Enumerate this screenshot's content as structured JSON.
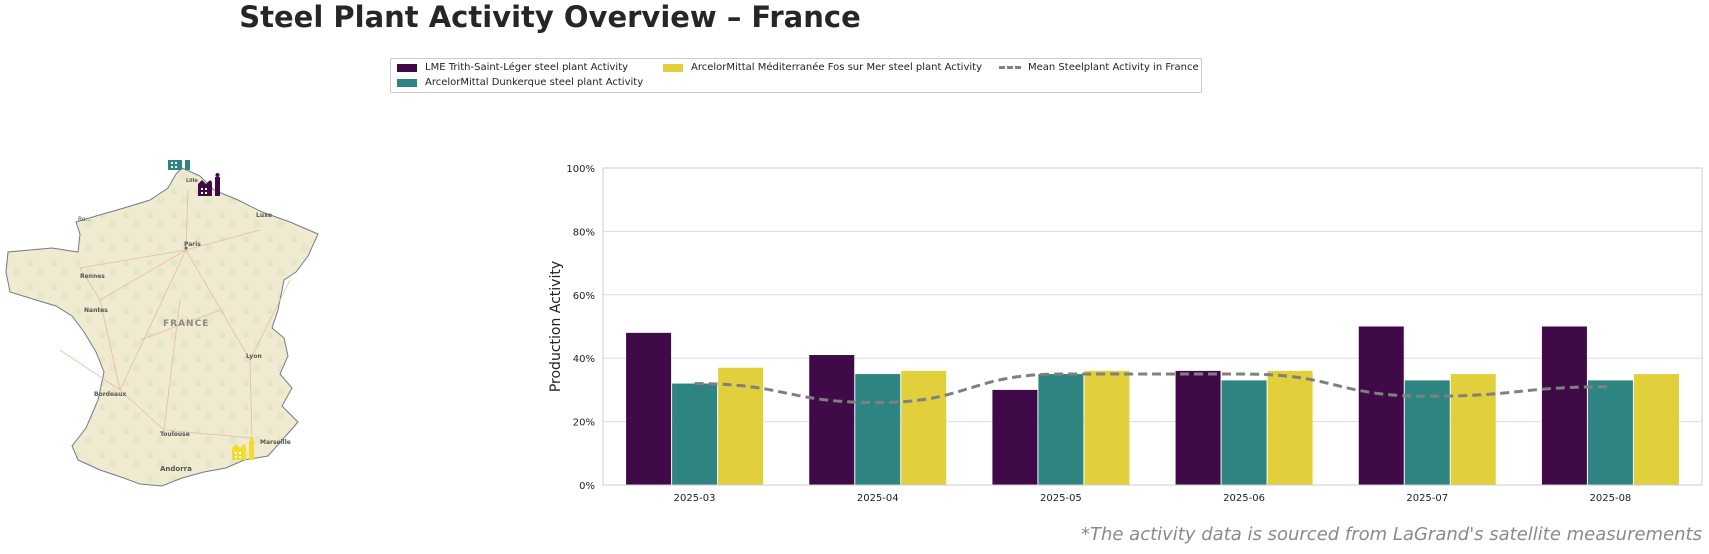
{
  "title": "Steel Plant Activity Overview – France",
  "footnote": "*The activity data is sourced from LaGrand's satellite measurements",
  "legend": {
    "items": [
      {
        "label": "LME Trith-Saint-Léger steel plant Activity",
        "color": "#3f0a47"
      },
      {
        "label": "ArcelorMittal Dunkerque steel plant Activity",
        "color": "#2d8480"
      },
      {
        "label": "ArcelorMittal Méditerranée Fos sur Mer steel plant Activity",
        "color": "#e1d03b"
      },
      {
        "label": "Mean Steelplant Activity in France",
        "color": "#808080"
      }
    ]
  },
  "map": {
    "country_label": "FRANCE",
    "cities": [
      "Lille",
      "Paris",
      "Rennes",
      "Nantes",
      "Lyon",
      "Bordeaux",
      "Toulouse",
      "Marseille",
      "Andorra",
      "Luxe",
      "Ro…"
    ],
    "markers": [
      {
        "plant": "ArcelorMittal Dunkerque",
        "color": "#2d8480",
        "icon": "factory-icon"
      },
      {
        "plant": "LME Trith-Saint-Léger",
        "color": "#3f0a47",
        "icon": "factory-icon"
      },
      {
        "plant": "ArcelorMittal Méditerranée Fos sur Mer",
        "color": "#f2dc32",
        "icon": "factory-icon"
      }
    ]
  },
  "chart_data": {
    "type": "bar",
    "ylabel": "Production Activity",
    "xlabel": "",
    "ylim": [
      0,
      100
    ],
    "yticks": [
      "0%",
      "20%",
      "40%",
      "60%",
      "80%",
      "100%"
    ],
    "grid": true,
    "legend_position": "top-center",
    "categories": [
      "2025-03",
      "2025-04",
      "2025-05",
      "2025-06",
      "2025-07",
      "2025-08"
    ],
    "series": [
      {
        "name": "LME Trith-Saint-Léger steel plant Activity",
        "color": "#3f0a47",
        "values": [
          48,
          41,
          30,
          36,
          50,
          50
        ]
      },
      {
        "name": "ArcelorMittal Dunkerque steel plant Activity",
        "color": "#2d8480",
        "values": [
          32,
          35,
          35,
          33,
          33,
          33
        ]
      },
      {
        "name": "ArcelorMittal Méditerranée Fos sur Mer steel plant Activity",
        "color": "#e1d03b",
        "values": [
          37,
          36,
          36,
          36,
          35,
          35
        ]
      }
    ],
    "mean_line": {
      "name": "Mean Steelplant Activity in France",
      "color": "#808080",
      "style": "dashed",
      "values": [
        32,
        26,
        35,
        35,
        28,
        31
      ]
    }
  }
}
